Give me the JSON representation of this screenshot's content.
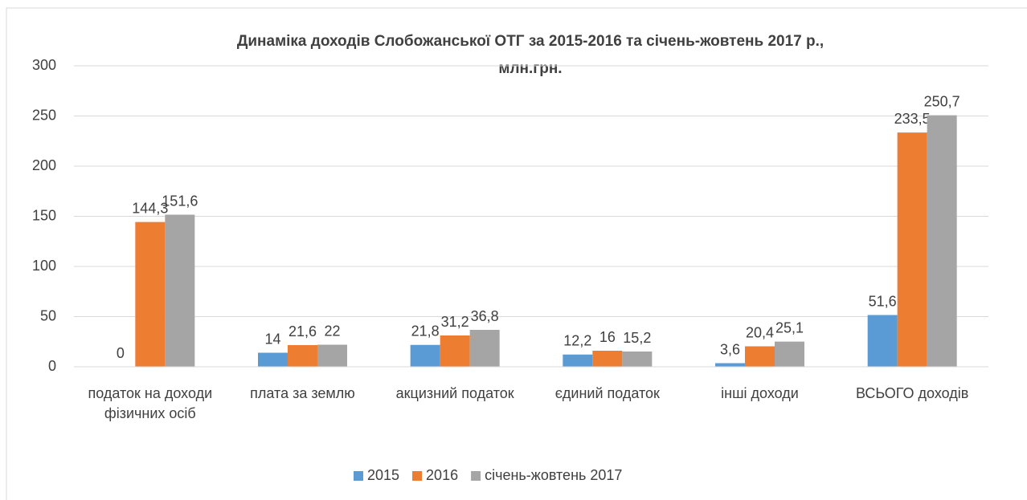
{
  "chart_data": {
    "type": "bar",
    "title": [
      "Динаміка доходів Слобожанської ОТГ за 2015-2016 та січень-жовтень 2017 р.,",
      "млн.грн."
    ],
    "categories": [
      "податок на доходи фізичних осіб",
      "плата за землю",
      "акцизний податок",
      "єдиний податок",
      "інші доходи",
      "ВСЬОГО доходів"
    ],
    "series": [
      {
        "name": "2015",
        "color": "#5b9bd5",
        "values": [
          0,
          14,
          21.8,
          12.2,
          3.6,
          51.6
        ],
        "value_labels": [
          "0",
          "14",
          "21,8",
          "12,2",
          "3,6",
          "51,6"
        ]
      },
      {
        "name": "2016",
        "color": "#ed7d31",
        "values": [
          144.3,
          21.6,
          31.2,
          16,
          20.4,
          233.5
        ],
        "value_labels": [
          "144,3",
          "21,6",
          "31,2",
          "16",
          "20,4",
          "233,5"
        ]
      },
      {
        "name": "січень-жовтень 2017",
        "color": "#a5a5a5",
        "values": [
          151.6,
          22,
          36.8,
          15.2,
          25.1,
          250.7
        ],
        "value_labels": [
          "151,6",
          "22",
          "36,8",
          "15,2",
          "25,1",
          "250,7"
        ]
      }
    ],
    "ylim": [
      0,
      300
    ],
    "yticks": [
      0,
      50,
      100,
      150,
      200,
      250,
      300
    ],
    "grid": true,
    "legend": "bottom"
  }
}
